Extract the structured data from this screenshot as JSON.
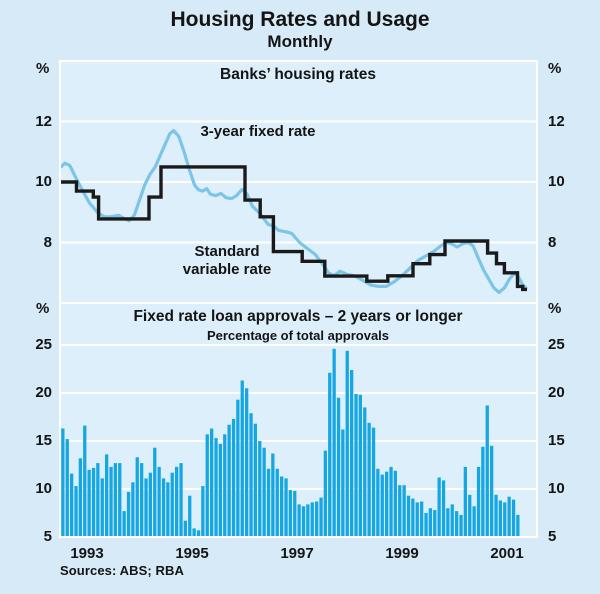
{
  "page": {
    "title": "Housing Rates and Usage",
    "subtitle": "Monthly",
    "source": "Sources: ABS; RBA"
  },
  "x_axis": {
    "labels": [
      "1993",
      "1995",
      "1997",
      "1999",
      "2001"
    ],
    "range": [
      1993.0,
      2002.08
    ]
  },
  "chart_data": [
    {
      "type": "line",
      "title": "Banks’ housing rates",
      "unit": "%",
      "ylim": [
        6,
        14
      ],
      "yticks": [
        8,
        10,
        12
      ],
      "grid": "horizontal-white",
      "legend_position": "inline-annotations",
      "series": [
        {
          "name": "3-year fixed rate",
          "style": "line",
          "color": "#7cc4e8",
          "points": [
            [
              1993.0,
              10.5
            ],
            [
              1993.08,
              10.62
            ],
            [
              1993.17,
              10.55
            ],
            [
              1993.3,
              10.1
            ],
            [
              1993.42,
              9.7
            ],
            [
              1993.55,
              9.3
            ],
            [
              1993.7,
              9.0
            ],
            [
              1993.83,
              8.85
            ],
            [
              1993.95,
              8.85
            ],
            [
              1994.1,
              8.9
            ],
            [
              1994.2,
              8.8
            ],
            [
              1994.3,
              8.72
            ],
            [
              1994.4,
              8.9
            ],
            [
              1994.5,
              9.4
            ],
            [
              1994.6,
              9.9
            ],
            [
              1994.7,
              10.25
            ],
            [
              1994.8,
              10.5
            ],
            [
              1994.9,
              10.9
            ],
            [
              1995.0,
              11.3
            ],
            [
              1995.08,
              11.6
            ],
            [
              1995.15,
              11.7
            ],
            [
              1995.25,
              11.5
            ],
            [
              1995.35,
              11.0
            ],
            [
              1995.45,
              10.4
            ],
            [
              1995.55,
              9.9
            ],
            [
              1995.62,
              9.75
            ],
            [
              1995.7,
              9.7
            ],
            [
              1995.78,
              9.78
            ],
            [
              1995.85,
              9.6
            ],
            [
              1995.95,
              9.55
            ],
            [
              1996.05,
              9.62
            ],
            [
              1996.15,
              9.48
            ],
            [
              1996.25,
              9.45
            ],
            [
              1996.35,
              9.55
            ],
            [
              1996.45,
              9.75
            ],
            [
              1996.55,
              9.6
            ],
            [
              1996.65,
              9.2
            ],
            [
              1996.8,
              8.95
            ],
            [
              1996.95,
              8.6
            ],
            [
              1997.05,
              8.55
            ],
            [
              1997.15,
              8.4
            ],
            [
              1997.3,
              8.35
            ],
            [
              1997.4,
              8.3
            ],
            [
              1997.55,
              8.0
            ],
            [
              1997.7,
              7.8
            ],
            [
              1997.85,
              7.6
            ],
            [
              1998.0,
              7.25
            ],
            [
              1998.1,
              7.0
            ],
            [
              1998.2,
              6.9
            ],
            [
              1998.32,
              7.05
            ],
            [
              1998.45,
              6.95
            ],
            [
              1998.6,
              6.9
            ],
            [
              1998.75,
              6.75
            ],
            [
              1998.9,
              6.6
            ],
            [
              1999.05,
              6.55
            ],
            [
              1999.2,
              6.55
            ],
            [
              1999.35,
              6.7
            ],
            [
              1999.5,
              6.9
            ],
            [
              1999.65,
              7.15
            ],
            [
              1999.8,
              7.4
            ],
            [
              1999.95,
              7.55
            ],
            [
              2000.1,
              7.7
            ],
            [
              2000.25,
              7.9
            ],
            [
              2000.35,
              8.0
            ],
            [
              2000.45,
              7.95
            ],
            [
              2000.55,
              7.85
            ],
            [
              2000.65,
              7.95
            ],
            [
              2000.75,
              8.0
            ],
            [
              2000.85,
              7.9
            ],
            [
              2000.95,
              7.5
            ],
            [
              2001.05,
              7.1
            ],
            [
              2001.15,
              6.8
            ],
            [
              2001.25,
              6.5
            ],
            [
              2001.35,
              6.35
            ],
            [
              2001.45,
              6.5
            ],
            [
              2001.55,
              6.8
            ],
            [
              2001.65,
              7.0
            ],
            [
              2001.72,
              6.85
            ],
            [
              2001.8,
              6.6
            ],
            [
              2001.86,
              6.5
            ]
          ]
        },
        {
          "name": "Standard variable rate",
          "name_line1": "Standard",
          "name_line2": "variable rate",
          "style": "step",
          "color": "#1a1a1a",
          "end_year": 2001.88,
          "steps": [
            [
              1993.0,
              10.0
            ],
            [
              1993.3,
              9.7
            ],
            [
              1993.62,
              9.5
            ],
            [
              1993.72,
              8.78
            ],
            [
              1994.68,
              9.5
            ],
            [
              1994.91,
              10.5
            ],
            [
              1996.51,
              9.4
            ],
            [
              1996.8,
              8.85
            ],
            [
              1997.05,
              7.7
            ],
            [
              1997.6,
              7.38
            ],
            [
              1998.03,
              6.89
            ],
            [
              1998.83,
              6.72
            ],
            [
              1999.23,
              6.9
            ],
            [
              1999.71,
              7.3
            ],
            [
              2000.03,
              7.6
            ],
            [
              2000.32,
              8.05
            ],
            [
              2001.13,
              7.65
            ],
            [
              2001.3,
              7.3
            ],
            [
              2001.45,
              7.0
            ],
            [
              2001.7,
              6.55
            ],
            [
              2001.8,
              6.45
            ]
          ]
        }
      ]
    },
    {
      "type": "bar",
      "title": "Fixed rate loan approvals – 2 years or longer",
      "subtitle": "Percentage of total approvals",
      "unit": "%",
      "ylim": [
        5,
        30
      ],
      "yticks": [
        5,
        10,
        15,
        20,
        25
      ],
      "grid": "horizontal-white",
      "color": "#16a7e3",
      "start_year": 1993,
      "frequency": "monthly",
      "values": [
        16.3,
        15.2,
        11.6,
        10.3,
        13.2,
        16.6,
        12.0,
        12.2,
        12.7,
        11.1,
        13.6,
        12.3,
        12.7,
        12.7,
        7.7,
        9.7,
        10.7,
        13.3,
        12.7,
        11.1,
        11.7,
        14.3,
        12.3,
        11.1,
        10.7,
        11.7,
        12.3,
        12.7,
        6.7,
        9.3,
        5.9,
        5.7,
        10.3,
        15.7,
        16.3,
        15.3,
        14.7,
        15.7,
        16.7,
        17.3,
        19.3,
        21.3,
        20.5,
        17.9,
        16.8,
        15.0,
        14.3,
        12.1,
        13.7,
        12.1,
        11.3,
        11.1,
        9.9,
        9.8,
        8.4,
        8.2,
        8.4,
        8.6,
        8.7,
        9.1,
        14.0,
        22.1,
        24.6,
        19.5,
        16.2,
        24.4,
        22.4,
        19.9,
        19.8,
        18.5,
        16.9,
        16.4,
        12.1,
        11.5,
        11.8,
        12.3,
        11.9,
        10.4,
        10.4,
        9.3,
        9.0,
        8.6,
        8.7,
        7.5,
        8.0,
        7.8,
        11.2,
        10.9,
        8.0,
        8.4,
        7.7,
        7.3,
        12.3,
        9.4,
        8.2,
        12.3,
        14.4,
        18.7,
        14.5,
        9.4,
        8.8,
        8.6,
        9.2,
        8.9,
        7.3
      ]
    }
  ],
  "colors": {
    "page_bg": "#d7eaf7",
    "panel_bg": "#ddeffa",
    "grid": "#ffffff",
    "bar": "#16a7e3",
    "fixed_line": "#7cc4e8",
    "variable_line": "#1a1a1a",
    "text": "#141414"
  }
}
